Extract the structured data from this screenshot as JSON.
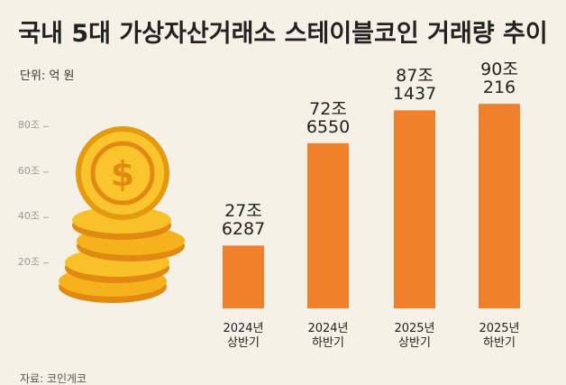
{
  "chart_data": {
    "type": "bar",
    "title": "국내 5대 가상자산거래소 스테이블코인 거래량 추이",
    "unit": "단위: 억 원",
    "source": "자료: 코인게코",
    "categories": [
      "2024년\n상반기",
      "2024년\n하반기",
      "2025년\n상반기",
      "2025년\n하반기"
    ],
    "values": [
      276287,
      726550,
      871437,
      900216
    ],
    "value_labels": [
      "27조\n6287",
      "72조\n6550",
      "87조\n1437",
      "90조\n216"
    ],
    "color": "#f0802b",
    "ylim": [
      0,
      1000000
    ],
    "yticks": [
      {
        "value": 200000,
        "label": "20조"
      },
      {
        "value": 400000,
        "label": "40조"
      },
      {
        "value": 600000,
        "label": "60조"
      },
      {
        "value": 800000,
        "label": "80조"
      }
    ]
  }
}
